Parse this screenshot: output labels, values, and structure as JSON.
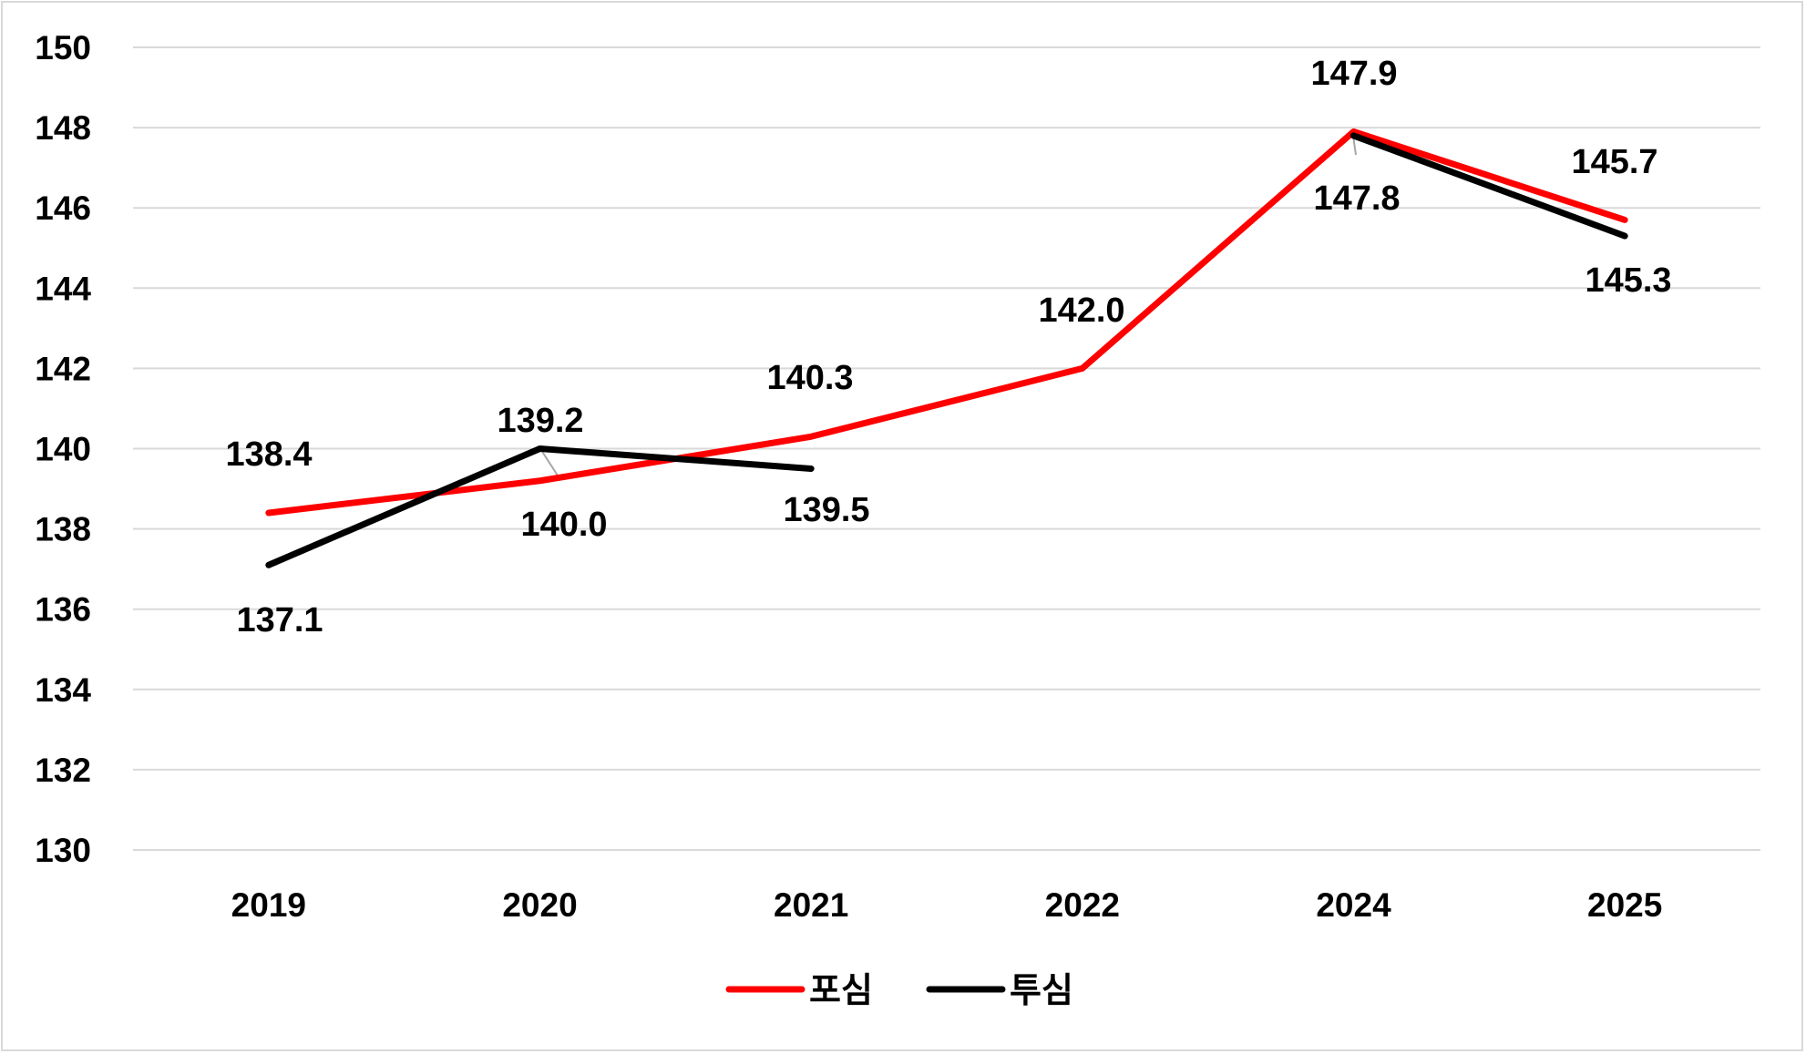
{
  "chart_data": {
    "type": "line",
    "categories": [
      "2019",
      "2020",
      "2021",
      "2022",
      "2024",
      "2025"
    ],
    "series": [
      {
        "name": "포심",
        "color": "#ff0000",
        "values": [
          138.4,
          139.2,
          140.3,
          142.0,
          147.9,
          145.7
        ],
        "labels": [
          "138.4",
          "139.2",
          "140.3",
          "142.0",
          "147.9",
          "145.7"
        ]
      },
      {
        "name": "투심",
        "color": "#000000",
        "values": [
          137.1,
          140.0,
          139.5,
          null,
          147.8,
          145.3
        ],
        "labels": [
          "137.1",
          "140.0",
          "139.5",
          null,
          "147.8",
          "145.3"
        ]
      }
    ],
    "ylim": [
      130,
      150
    ],
    "yticks": [
      "130",
      "132",
      "134",
      "136",
      "138",
      "140",
      "142",
      "144",
      "146",
      "148",
      "150"
    ],
    "grid": true,
    "legend_position": "bottom",
    "gridline_color": "#d9d9d9"
  }
}
